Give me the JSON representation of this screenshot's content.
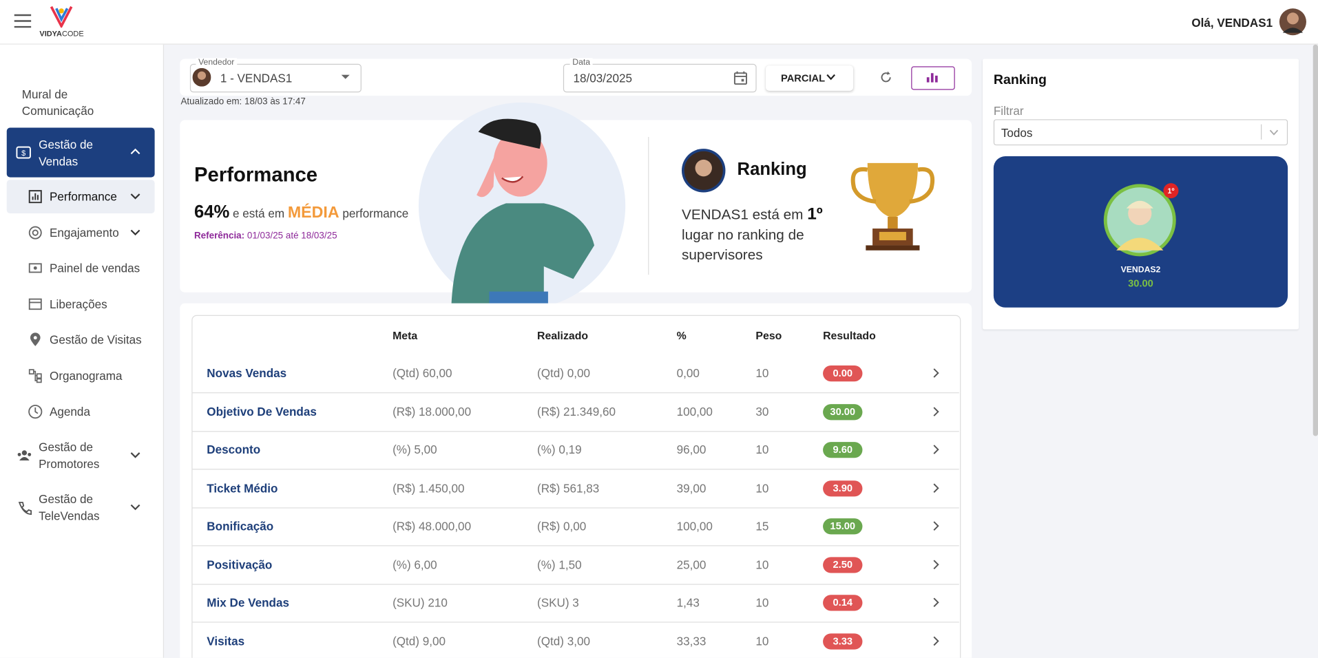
{
  "header": {
    "logo": [
      "VIDYA",
      "CODE"
    ],
    "greeting": "Olá, VENDAS1"
  },
  "sidebar": {
    "mural": [
      "Mural de",
      "Comunicação"
    ],
    "vendas": [
      "Gestão de",
      "Vendas"
    ],
    "sub": [
      "Performance",
      "Engajamento",
      "Painel de vendas",
      "Liberações",
      "Gestão de Visitas",
      "Organograma",
      "Agenda"
    ],
    "promotores": [
      "Gestão de",
      "Promotores"
    ],
    "televendas": [
      "Gestão de",
      "TeleVendas"
    ]
  },
  "toolbar": {
    "vendedor_label": "Vendedor",
    "vendedor": "1 - VENDAS1",
    "data_label": "Data",
    "data": "18/03/2025",
    "mode": "PARCIAL",
    "updated": "Atualizado em: 18/03 às 17:47"
  },
  "performance": {
    "title": "Performance",
    "percent": "64%",
    "text1": "e está em",
    "level": "MÉDIA",
    "text2": "performance",
    "ref_label": "Referência:",
    "ref_period": "01/03/25 até 18/03/25"
  },
  "ranking_card": {
    "title": "Ranking",
    "line1": "VENDAS1 está em",
    "place": "1º",
    "line2": "lugar no ranking de",
    "line3": "supervisores"
  },
  "table": {
    "columns": [
      "Meta",
      "Realizado",
      "%",
      "Peso",
      "Resultado"
    ],
    "rows": [
      {
        "name": "Novas Vendas",
        "meta": "(Qtd) 60,00",
        "realizado": "(Qtd) 0,00",
        "pct": "0,00",
        "peso": "10",
        "resultado": "0.00",
        "color": "#e05555"
      },
      {
        "name": "Objetivo De Vendas",
        "meta": "(R$) 18.000,00",
        "realizado": "(R$) 21.349,60",
        "pct": "100,00",
        "peso": "30",
        "resultado": "30.00",
        "color": "#6aa84f"
      },
      {
        "name": "Desconto",
        "meta": "(%) 5,00",
        "realizado": "(%) 0,19",
        "pct": "96,00",
        "peso": "10",
        "resultado": "9.60",
        "color": "#6aa84f"
      },
      {
        "name": "Ticket Médio",
        "meta": "(R$) 1.450,00",
        "realizado": "(R$) 561,83",
        "pct": "39,00",
        "peso": "10",
        "resultado": "3.90",
        "color": "#e05555"
      },
      {
        "name": "Bonificação",
        "meta": "(R$) 48.000,00",
        "realizado": "(R$) 0,00",
        "pct": "100,00",
        "peso": "15",
        "resultado": "15.00",
        "color": "#6aa84f"
      },
      {
        "name": "Positivação",
        "meta": "(%) 6,00",
        "realizado": "(%) 1,50",
        "pct": "25,00",
        "peso": "10",
        "resultado": "2.50",
        "color": "#e05555"
      },
      {
        "name": "Mix De Vendas",
        "meta": "(SKU) 210",
        "realizado": "(SKU) 3",
        "pct": "1,43",
        "peso": "10",
        "resultado": "0.14",
        "color": "#e05555"
      },
      {
        "name": "Visitas",
        "meta": "(Qtd) 9,00",
        "realizado": "(Qtd) 3,00",
        "pct": "33,33",
        "peso": "10",
        "resultado": "3.33",
        "color": "#e05555"
      }
    ]
  },
  "ranking_panel": {
    "title": "Ranking",
    "filter_label": "Filtrar",
    "filter": "Todos",
    "top_name": "VENDAS2",
    "top_score": "30.00",
    "top_place": "1º"
  }
}
